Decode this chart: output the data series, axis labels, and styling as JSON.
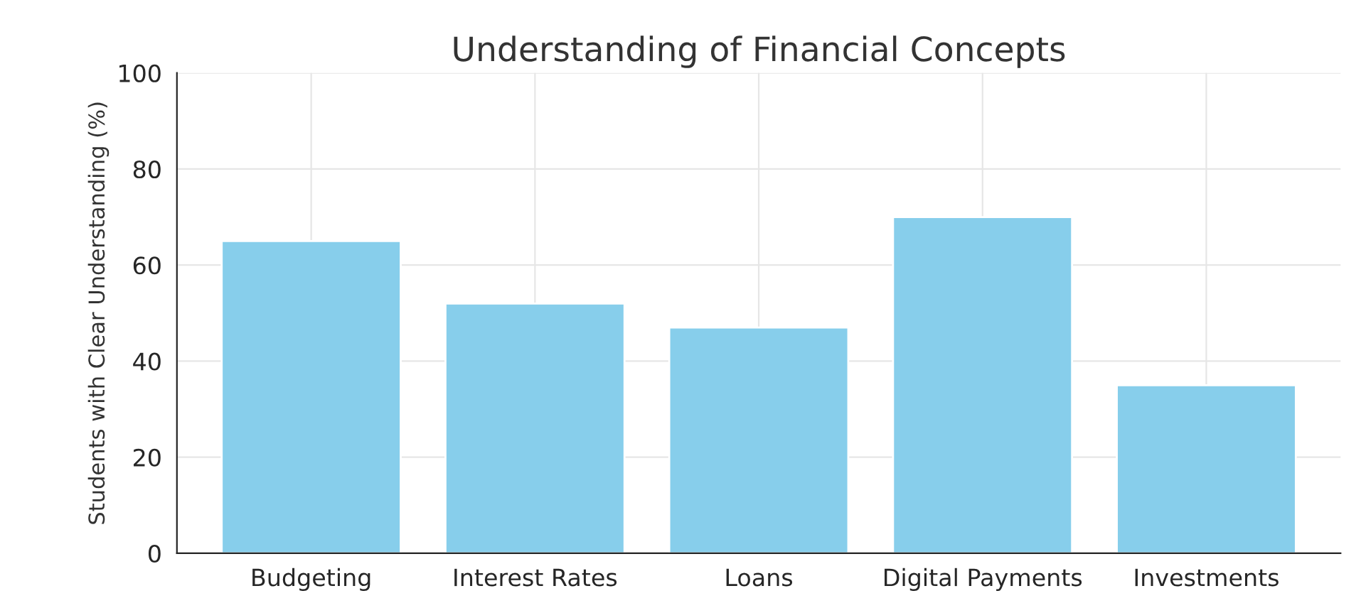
{
  "chart_data": {
    "type": "bar",
    "title": "Understanding of Financial Concepts",
    "ylabel": "Students with Clear Understanding (%)",
    "categories": [
      "Budgeting",
      "Interest Rates",
      "Loans",
      "Digital Payments",
      "Investments"
    ],
    "values": [
      65,
      52,
      47,
      70,
      35
    ],
    "color": "#87ceeb",
    "ylim": [
      0,
      100
    ],
    "yticks": [
      0,
      20,
      40,
      60,
      80,
      100
    ],
    "grid": true
  }
}
